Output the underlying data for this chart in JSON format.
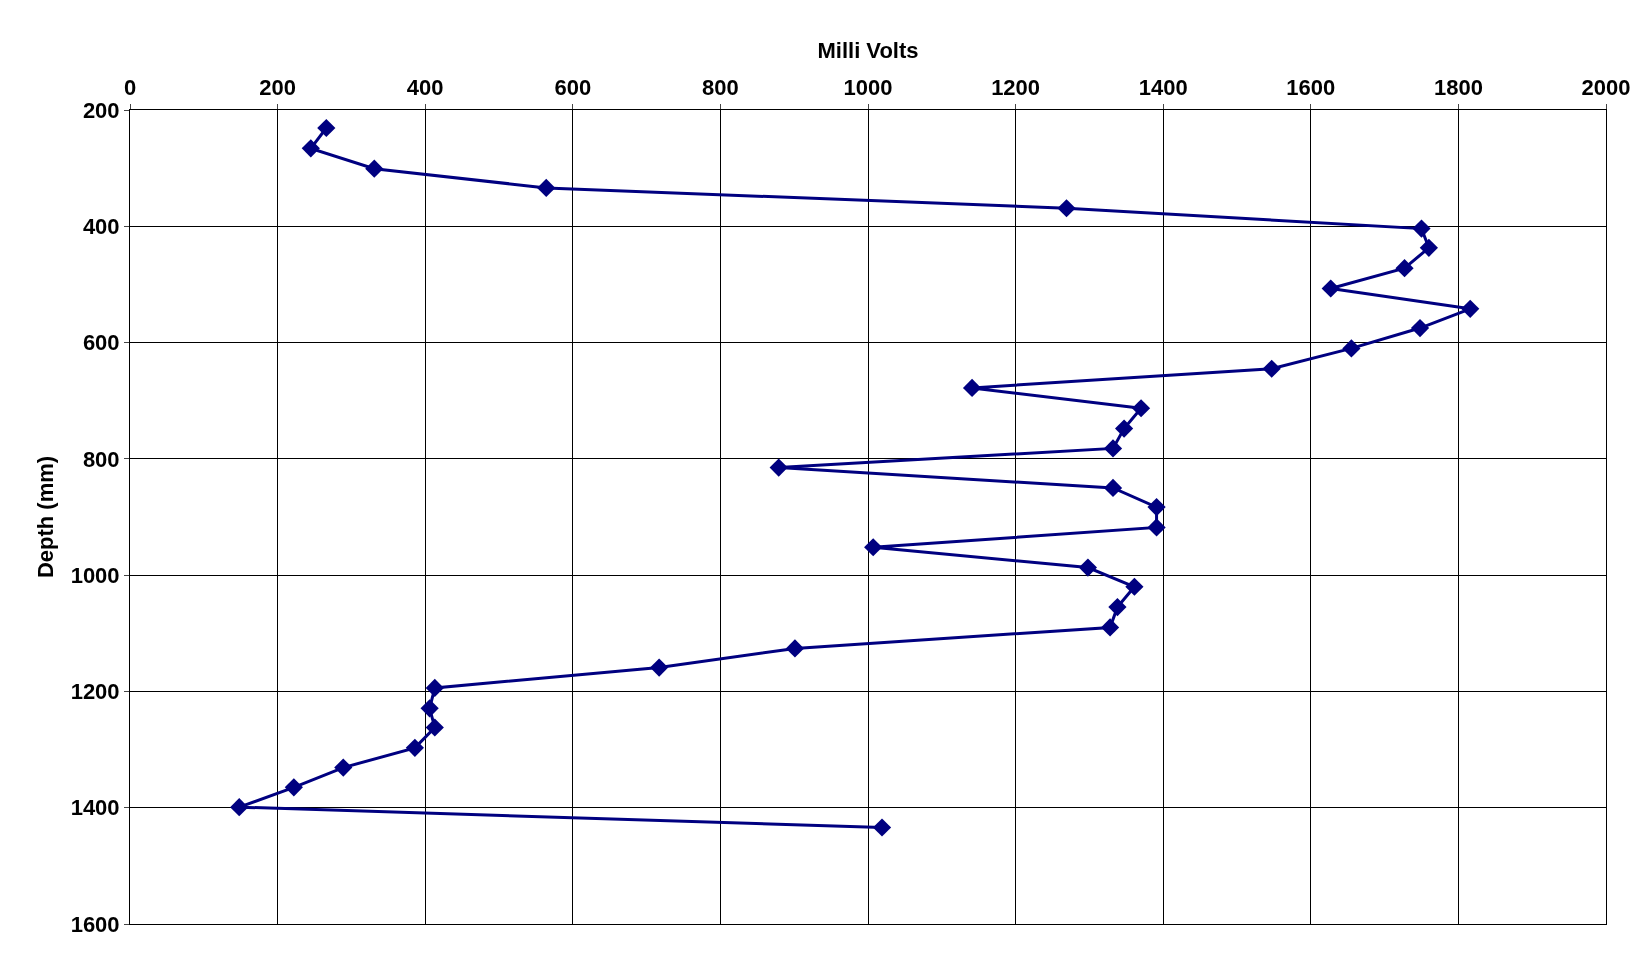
{
  "chart_data": {
    "type": "line",
    "xlabel": "Milli Volts",
    "ylabel": "Depth (mm)",
    "series": [
      {
        "color": "#000080",
        "x": [
          266,
          245,
          331,
          564,
          1269,
          1750,
          1760,
          1727,
          1627,
          1816,
          1748,
          1655,
          1547,
          1141,
          1370,
          1347,
          1332,
          879,
          1332,
          1391,
          1391,
          1007,
          1298,
          1361,
          1338,
          1328,
          901,
          717,
          413,
          406,
          413,
          386,
          289,
          222,
          148,
          1019
        ],
        "values": [
          231,
          266,
          301,
          334,
          369,
          404,
          437,
          472,
          507,
          542,
          575,
          610,
          645,
          678,
          713,
          748,
          782,
          815,
          850,
          883,
          918,
          952,
          987,
          1020,
          1055,
          1090,
          1126,
          1159,
          1194,
          1229,
          1262,
          1297,
          1331,
          1365,
          1399,
          1434
        ]
      }
    ],
    "xlim": [
      0,
      2000
    ],
    "xticks": [
      0,
      200,
      400,
      600,
      800,
      1000,
      1200,
      1400,
      1600,
      1800,
      2000
    ],
    "ylim": [
      1600,
      200
    ],
    "yticks": [
      200,
      400,
      600,
      800,
      1000,
      1200,
      1400,
      1600
    ],
    "grid": true,
    "marker": "diamond",
    "line_style": "solid"
  }
}
